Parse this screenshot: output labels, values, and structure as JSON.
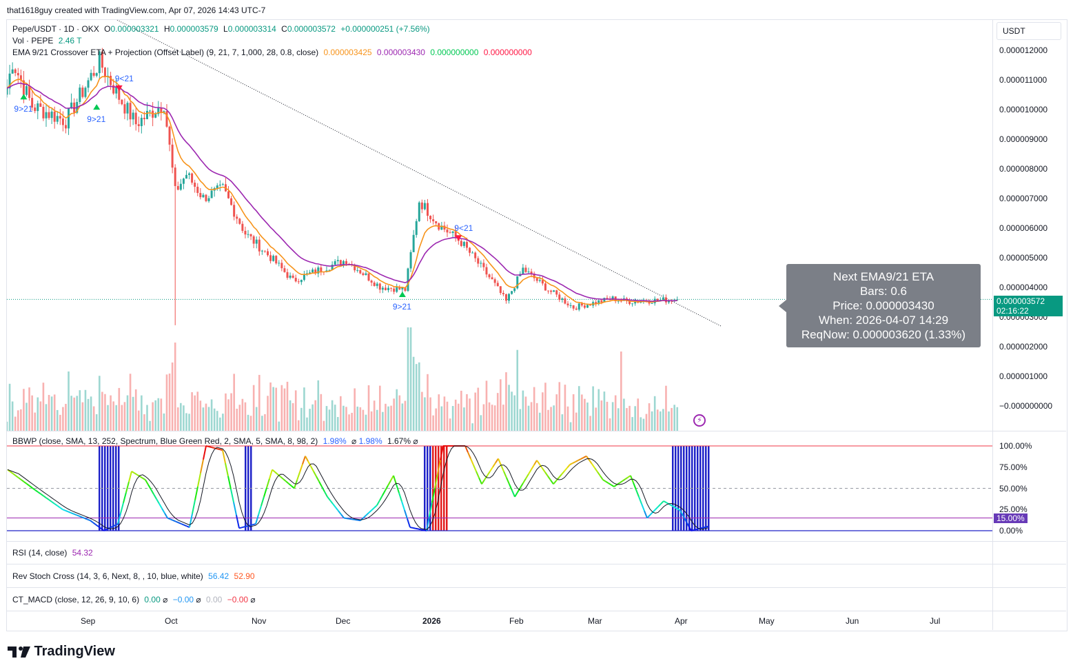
{
  "header": {
    "credit": "that1618guy created with TradingView.com, Apr 07, 2026 14:43 UTC-7"
  },
  "legend": {
    "symbol": "Pepe/USDT · 1D · OKX",
    "o_label": "O",
    "o_value": "0.000003321",
    "h_label": "H",
    "h_value": "0.000003579",
    "l_label": "L",
    "l_value": "0.000003314",
    "c_label": "C",
    "c_value": "0.000003572",
    "change": "+0.000000251 (+7.56%)",
    "vol_label": "Vol · PEPE",
    "vol_value": "2.46 T",
    "ema_label": "EMA 9/21 Crossover ETA + Projection (Offset Label) (9, 21, 7, 1,000, 28, 0.8, close)",
    "ema_v1": "0.000003425",
    "ema_v2": "0.000003430",
    "ema_v3": "0.000000000",
    "ema_v4": "0.000000000"
  },
  "currency_button": "USDT",
  "price_axis": [
    "0.000012000",
    "0.000011000",
    "0.000010000",
    "0.000009000",
    "0.000008000",
    "0.000007000",
    "0.000006000",
    "0.000005000",
    "0.000004000",
    "0.000003000",
    "0.000002000",
    "0.000001000",
    "−0.000000000"
  ],
  "last_price": {
    "value": "0.000003572",
    "countdown": "02:16:22"
  },
  "tooltip": {
    "line1": "Next EMA9/21 ETA",
    "line2": "Bars: 0.6",
    "line3": "Price: 0.000003430",
    "line4": "When: 2026-04-07 14:29",
    "line5": "ReqNow: 0.000003620 (1.33%)"
  },
  "cross_labels": {
    "bull": "9>21",
    "bear": "9<21"
  },
  "bbwp": {
    "label": "BBWP (close, SMA, 13, 252, Spectrum, Blue Green Red, 2, SMA, 5, SMA, 8, 98, 2)",
    "v1": "1.98%",
    "v2": "1.98%",
    "v3": "1.67%",
    "axis": [
      "100.00%",
      "75.00%",
      "50.00%",
      "25.00%",
      "15.00%",
      "0.00%"
    ]
  },
  "rsi": {
    "label": "RSI (14, close)",
    "value": "54.32"
  },
  "stoch": {
    "label": "Rev Stoch Cross (14, 3, 6, Next, 8, , 10, blue, white)",
    "v1": "56.42",
    "v2": "52.90"
  },
  "macd": {
    "label": "CT_MACD (close, 12, 26, 9, 10, 6)",
    "v1": "0.00",
    "v2": "−0.00",
    "v3": "0.00",
    "v4": "−0.00"
  },
  "time_axis": [
    "Sep",
    "Oct",
    "Nov",
    "Dec",
    "2026",
    "Feb",
    "Mar",
    "Apr",
    "May",
    "Jun",
    "Jul"
  ],
  "branding": "TradingView",
  "colors": {
    "up": "#26a69a",
    "down": "#ef5350",
    "ema9": "#f7931a",
    "ema21": "#9c27b0",
    "trend": "#131722",
    "bbwp_blue": "#1e22c8",
    "bbwp_red": "#e21b1b"
  },
  "chart_data": {
    "type": "candlestick",
    "x_start": "2025-08-11",
    "interval": "1D",
    "ylim": [
      0,
      1.3e-05
    ],
    "close_key_points": [
      [
        "2025-08-11",
        1.07e-05
      ],
      [
        "2025-08-13",
        1.16e-05
      ],
      [
        "2025-08-20",
        1.01e-05
      ],
      [
        "2025-09-01",
        9.6e-06
      ],
      [
        "2025-09-13",
        1.16e-05
      ],
      [
        "2025-09-20",
        1.04e-05
      ],
      [
        "2025-09-26",
        9.5e-06
      ],
      [
        "2025-10-06",
        1.02e-05
      ],
      [
        "2025-10-10",
        7.2e-06
      ],
      [
        "2025-10-14",
        7.8e-06
      ],
      [
        "2025-10-20",
        7e-06
      ],
      [
        "2025-10-27",
        7.3e-06
      ],
      [
        "2025-11-04",
        5.8e-06
      ],
      [
        "2025-11-14",
        4.9e-06
      ],
      [
        "2025-11-21",
        4.2e-06
      ],
      [
        "2025-12-01",
        4.6e-06
      ],
      [
        "2025-12-10",
        4.9e-06
      ],
      [
        "2025-12-22",
        4e-06
      ],
      [
        "2025-12-31",
        3.9e-06
      ],
      [
        "2026-01-05",
        6.9e-06
      ],
      [
        "2026-01-12",
        6.1e-06
      ],
      [
        "2026-01-20",
        5.5e-06
      ],
      [
        "2026-01-31",
        4.2e-06
      ],
      [
        "2026-02-05",
        3.5e-06
      ],
      [
        "2026-02-11",
        4.6e-06
      ],
      [
        "2026-02-20",
        3.9e-06
      ],
      [
        "2026-03-01",
        3.3e-06
      ],
      [
        "2026-03-15",
        3.6e-06
      ],
      [
        "2026-03-20",
        3.5e-06
      ],
      [
        "2026-04-07",
        3.572e-06
      ]
    ],
    "crossovers": [
      {
        "date": "2025-08-17",
        "type": "bull"
      },
      {
        "date": "2025-09-12",
        "type": "bull"
      },
      {
        "date": "2025-09-20",
        "type": "bear"
      },
      {
        "date": "2025-12-30",
        "type": "bull"
      },
      {
        "date": "2026-01-19",
        "type": "bear"
      }
    ],
    "bbwp_key_points": [
      [
        0,
        72
      ],
      [
        10,
        48
      ],
      [
        20,
        25
      ],
      [
        30,
        12
      ],
      [
        35,
        0
      ],
      [
        40,
        8
      ],
      [
        45,
        70
      ],
      [
        50,
        60
      ],
      [
        58,
        15
      ],
      [
        66,
        4
      ],
      [
        72,
        100
      ],
      [
        78,
        95
      ],
      [
        84,
        3
      ],
      [
        90,
        8
      ],
      [
        96,
        72
      ],
      [
        104,
        50
      ],
      [
        108,
        88
      ],
      [
        116,
        40
      ],
      [
        122,
        15
      ],
      [
        128,
        12
      ],
      [
        134,
        30
      ],
      [
        140,
        65
      ],
      [
        146,
        4
      ],
      [
        152,
        0
      ],
      [
        158,
        100
      ],
      [
        166,
        100
      ],
      [
        172,
        55
      ],
      [
        178,
        85
      ],
      [
        184,
        40
      ],
      [
        192,
        83
      ],
      [
        198,
        55
      ],
      [
        204,
        78
      ],
      [
        210,
        88
      ],
      [
        216,
        60
      ],
      [
        220,
        52
      ],
      [
        226,
        65
      ],
      [
        232,
        15
      ],
      [
        238,
        35
      ],
      [
        244,
        24
      ],
      [
        248,
        0
      ],
      [
        254,
        5
      ]
    ],
    "bbwp_highlight_blue_ranges": [
      [
        33,
        40
      ],
      [
        86,
        88
      ],
      [
        151,
        153
      ],
      [
        241,
        254
      ]
    ],
    "bbwp_highlight_red_ranges": [
      [
        154,
        159
      ]
    ]
  }
}
